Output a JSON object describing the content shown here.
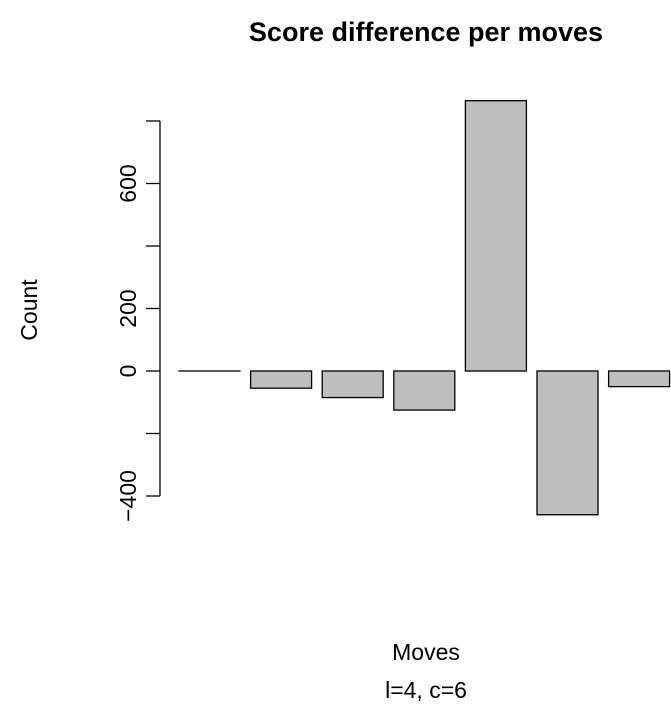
{
  "chart_data": {
    "type": "bar",
    "title": "Score difference per moves",
    "xlabel": "Moves",
    "subtitle": "l=4, c=6",
    "ylabel": "Count",
    "categories": [
      "",
      "",
      "",
      "",
      "",
      "",
      ""
    ],
    "values": [
      0,
      -55,
      -85,
      -125,
      865,
      -460,
      -50
    ],
    "ylim": [
      -400,
      800
    ],
    "yticks": [
      -400,
      -200,
      0,
      200,
      400,
      600,
      800
    ],
    "ytick_labels": [
      "-400",
      "",
      "0",
      "200",
      "",
      "600",
      ""
    ],
    "grid": false,
    "legend": "none",
    "bar_fill": "#bebebe",
    "bar_stroke": "#000000"
  }
}
